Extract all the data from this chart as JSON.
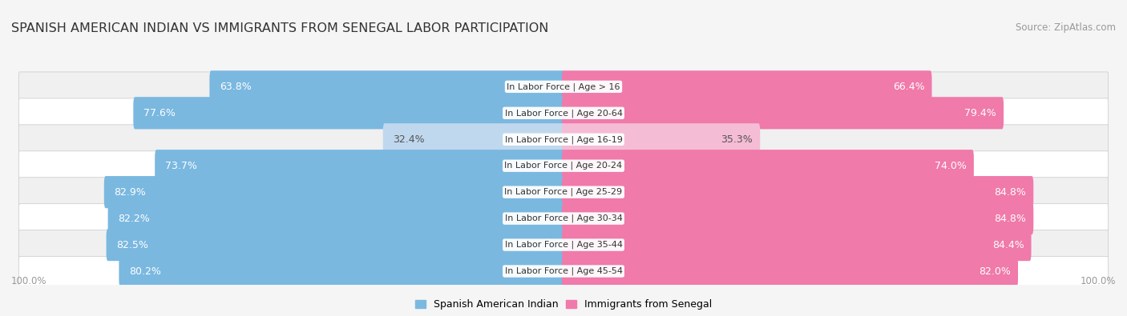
{
  "title": "SPANISH AMERICAN INDIAN VS IMMIGRANTS FROM SENEGAL LABOR PARTICIPATION",
  "source": "Source: ZipAtlas.com",
  "categories": [
    "In Labor Force | Age > 16",
    "In Labor Force | Age 20-64",
    "In Labor Force | Age 16-19",
    "In Labor Force | Age 20-24",
    "In Labor Force | Age 25-29",
    "In Labor Force | Age 30-34",
    "In Labor Force | Age 35-44",
    "In Labor Force | Age 45-54"
  ],
  "left_values": [
    63.8,
    77.6,
    32.4,
    73.7,
    82.9,
    82.2,
    82.5,
    80.2
  ],
  "right_values": [
    66.4,
    79.4,
    35.3,
    74.0,
    84.8,
    84.8,
    84.4,
    82.0
  ],
  "left_color": "#7ab8e0",
  "right_color": "#f07aaa",
  "left_color_light": "#c0d8ee",
  "right_color_light": "#f5bcd5",
  "label_left": "Spanish American Indian",
  "label_right": "Immigrants from Senegal",
  "row_bg_even": "#f0f0f0",
  "row_bg_odd": "#ffffff",
  "fig_bg": "#f5f5f5",
  "max_value": 100.0,
  "title_fontsize": 11.5,
  "source_fontsize": 8.5,
  "bar_label_fontsize": 9,
  "category_fontsize": 8
}
